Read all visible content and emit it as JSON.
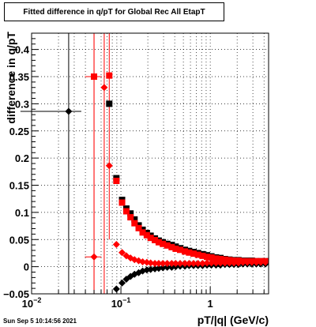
{
  "chart_data": {
    "type": "scatter",
    "title": "Fitted difference in q/pT for Global Rec All EtapT",
    "xlabel": "pT/|q| (GeV/c)",
    "ylabel": "difference in q/pT",
    "xscale": "log",
    "xlim": [
      0.01,
      4.5
    ],
    "ylim": [
      -0.05,
      0.43
    ],
    "grid": true,
    "x_ticks": [
      {
        "value": 0.01,
        "mantissa": "10",
        "exponent": "−2"
      },
      {
        "value": 0.1,
        "mantissa": "10",
        "exponent": "−1"
      },
      {
        "value": 1,
        "mantissa": "1",
        "exponent": ""
      }
    ],
    "y_ticks": [
      "−0.05",
      "0",
      "0.05",
      "0.1",
      "0.15",
      "0.2",
      "0.25",
      "0.3",
      "0.35",
      "0.4"
    ],
    "y_tick_values": [
      -0.05,
      0,
      0.05,
      0.1,
      0.15,
      0.2,
      0.25,
      0.3,
      0.35,
      0.4
    ],
    "series": [
      {
        "color": "#000000",
        "marker": "square",
        "points": [
          [
            0.074,
            0.3
          ],
          [
            0.089,
            0.163
          ],
          [
            0.103,
            0.123
          ],
          [
            0.115,
            0.107
          ],
          [
            0.128,
            0.098
          ],
          [
            0.142,
            0.087
          ],
          [
            0.158,
            0.076
          ],
          [
            0.175,
            0.068
          ],
          [
            0.195,
            0.062
          ],
          [
            0.215,
            0.057
          ],
          [
            0.24,
            0.052
          ],
          [
            0.265,
            0.048
          ],
          [
            0.295,
            0.045
          ],
          [
            0.33,
            0.042
          ],
          [
            0.37,
            0.04
          ],
          [
            0.41,
            0.037
          ],
          [
            0.46,
            0.034
          ],
          [
            0.52,
            0.031
          ],
          [
            0.58,
            0.029
          ],
          [
            0.65,
            0.027
          ],
          [
            0.73,
            0.025
          ],
          [
            0.82,
            0.023
          ],
          [
            0.92,
            0.021
          ],
          [
            1.03,
            0.019
          ],
          [
            1.16,
            0.017
          ],
          [
            1.3,
            0.016
          ],
          [
            1.46,
            0.014
          ],
          [
            1.64,
            0.013
          ],
          [
            1.84,
            0.012
          ],
          [
            2.07,
            0.012
          ],
          [
            2.32,
            0.011
          ],
          [
            2.6,
            0.011
          ],
          [
            2.92,
            0.011
          ],
          [
            3.28,
            0.01
          ],
          [
            3.68,
            0.01
          ],
          [
            4.15,
            0.01
          ]
        ]
      },
      {
        "color": "#ff0000",
        "marker": "square",
        "points": [
          [
            0.05,
            0.35
          ],
          [
            0.074,
            0.352
          ],
          [
            0.089,
            0.158
          ],
          [
            0.103,
            0.118
          ],
          [
            0.115,
            0.102
          ],
          [
            0.128,
            0.091
          ],
          [
            0.142,
            0.08
          ],
          [
            0.158,
            0.071
          ],
          [
            0.175,
            0.063
          ],
          [
            0.195,
            0.058
          ],
          [
            0.215,
            0.053
          ],
          [
            0.24,
            0.049
          ],
          [
            0.265,
            0.045
          ],
          [
            0.295,
            0.042
          ],
          [
            0.33,
            0.039
          ],
          [
            0.37,
            0.036
          ],
          [
            0.41,
            0.033
          ],
          [
            0.46,
            0.031
          ],
          [
            0.52,
            0.028
          ],
          [
            0.58,
            0.026
          ],
          [
            0.65,
            0.024
          ],
          [
            0.73,
            0.022
          ],
          [
            0.82,
            0.02
          ],
          [
            0.92,
            0.018
          ],
          [
            1.03,
            0.017
          ],
          [
            1.16,
            0.015
          ],
          [
            1.3,
            0.014
          ],
          [
            1.46,
            0.013
          ],
          [
            1.64,
            0.012
          ],
          [
            1.84,
            0.011
          ],
          [
            2.07,
            0.011
          ],
          [
            2.32,
            0.01
          ],
          [
            2.6,
            0.01
          ],
          [
            2.92,
            0.01
          ],
          [
            3.28,
            0.01
          ],
          [
            3.68,
            0.01
          ],
          [
            4.15,
            0.01
          ]
        ]
      },
      {
        "color": "#000000",
        "marker": "diamond",
        "points": [
          [
            0.026,
            0.286
          ],
          [
            0.089,
            -0.041
          ],
          [
            0.103,
            -0.03
          ],
          [
            0.115,
            -0.023
          ],
          [
            0.128,
            -0.018
          ],
          [
            0.142,
            -0.014
          ],
          [
            0.158,
            -0.011
          ],
          [
            0.175,
            -0.008
          ],
          [
            0.195,
            -0.006
          ],
          [
            0.215,
            -0.005
          ],
          [
            0.24,
            -0.004
          ],
          [
            0.265,
            -0.003
          ],
          [
            0.295,
            -0.002
          ],
          [
            0.33,
            -0.001
          ],
          [
            0.37,
            -0.001
          ],
          [
            0.41,
            0.0
          ],
          [
            0.46,
            0.001
          ],
          [
            0.52,
            0.001
          ],
          [
            0.58,
            0.002
          ],
          [
            0.65,
            0.002
          ],
          [
            0.73,
            0.002
          ],
          [
            0.82,
            0.002
          ],
          [
            0.92,
            0.003
          ],
          [
            1.03,
            0.003
          ],
          [
            1.16,
            0.003
          ],
          [
            1.3,
            0.003
          ],
          [
            1.46,
            0.004
          ],
          [
            1.64,
            0.004
          ],
          [
            1.84,
            0.004
          ],
          [
            2.07,
            0.004
          ],
          [
            2.32,
            0.005
          ],
          [
            2.6,
            0.005
          ],
          [
            2.92,
            0.005
          ],
          [
            3.28,
            0.005
          ],
          [
            3.68,
            0.005
          ],
          [
            4.15,
            0.005
          ]
        ]
      },
      {
        "color": "#ff0000",
        "marker": "diamond",
        "points": [
          [
            0.05,
            0.018
          ],
          [
            0.065,
            0.33
          ],
          [
            0.074,
            0.186
          ],
          [
            0.089,
            0.041
          ],
          [
            0.103,
            0.026
          ],
          [
            0.115,
            0.02
          ],
          [
            0.128,
            0.016
          ],
          [
            0.142,
            0.013
          ],
          [
            0.158,
            0.011
          ],
          [
            0.175,
            0.009
          ],
          [
            0.195,
            0.008
          ],
          [
            0.215,
            0.007
          ],
          [
            0.24,
            0.006
          ],
          [
            0.265,
            0.006
          ],
          [
            0.295,
            0.006
          ],
          [
            0.33,
            0.006
          ],
          [
            0.37,
            0.006
          ],
          [
            0.41,
            0.006
          ],
          [
            0.46,
            0.006
          ],
          [
            0.52,
            0.006
          ],
          [
            0.58,
            0.006
          ],
          [
            0.65,
            0.006
          ],
          [
            0.73,
            0.006
          ],
          [
            0.82,
            0.006
          ],
          [
            0.92,
            0.007
          ],
          [
            1.03,
            0.007
          ],
          [
            1.16,
            0.007
          ],
          [
            1.3,
            0.007
          ],
          [
            1.46,
            0.007
          ],
          [
            1.64,
            0.007
          ],
          [
            1.84,
            0.007
          ],
          [
            2.07,
            0.007
          ],
          [
            2.32,
            0.008
          ],
          [
            2.6,
            0.008
          ],
          [
            2.92,
            0.008
          ],
          [
            3.28,
            0.008
          ],
          [
            3.68,
            0.008
          ],
          [
            4.15,
            0.008
          ]
        ]
      }
    ],
    "error_bars": [
      {
        "x": 0.026,
        "y": 0.286,
        "x_range": [
          0.0075,
          0.036
        ],
        "y_range": [
          -0.05,
          0.43
        ],
        "color": "#000000"
      },
      {
        "x": 0.05,
        "y": 0.35,
        "x_range": [
          0.0395,
          0.0605
        ],
        "y_range": [
          -0.05,
          0.43
        ],
        "color": "#ff0000"
      },
      {
        "x": 0.05,
        "y": 0.018,
        "x_range": [
          0.0395,
          0.0605
        ],
        "y_range": [
          -0.05,
          0.43
        ],
        "color": "#ff0000"
      },
      {
        "x": 0.065,
        "y": 0.33,
        "x_range": [
          0.0625,
          0.0675
        ],
        "y_range": [
          -0.05,
          0.43
        ],
        "color": "#ff0000"
      },
      {
        "x": 0.074,
        "y": 0.186,
        "x_range": [
          0.071,
          0.077
        ],
        "y_range": [
          0.05,
          0.43
        ],
        "color": "#ff0000"
      }
    ]
  },
  "timestamp": "Sun Sep  5 10:14:56 2021"
}
